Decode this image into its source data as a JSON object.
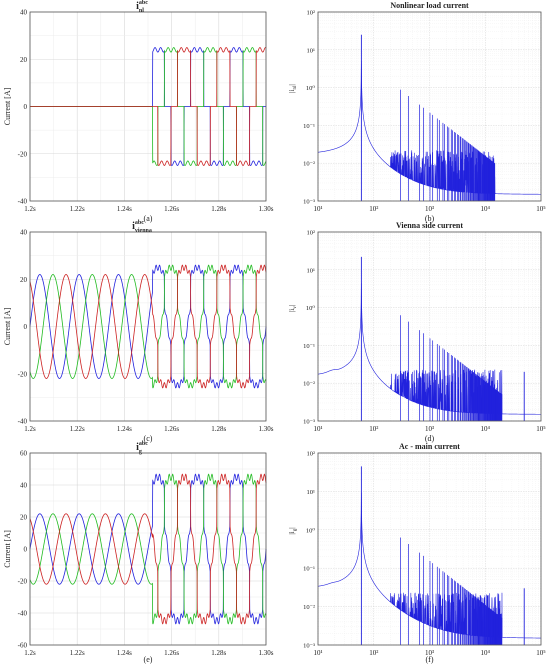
{
  "figure": {
    "panels": [
      {
        "id": "a",
        "kind": "time",
        "caption": "(a)",
        "title_main": "i",
        "title_sup": "abc",
        "title_sub": "nl",
        "ylabel": "Current [A]"
      },
      {
        "id": "b",
        "kind": "spectrum",
        "caption": "(b)",
        "title": "Nonlinear load current",
        "ylabel": "|i",
        "ylabel_sub": "nl",
        "ylabel_end": "|"
      },
      {
        "id": "c",
        "kind": "time",
        "caption": "(c)",
        "title_main": "i",
        "title_sup": "abc",
        "title_sub": "vienna",
        "ylabel": "Current [A]"
      },
      {
        "id": "d",
        "kind": "spectrum",
        "caption": "(d)",
        "title": "Vienna side current",
        "ylabel": "|i",
        "ylabel_sub": "v",
        "ylabel_end": "|"
      },
      {
        "id": "e",
        "kind": "time",
        "caption": "(e)",
        "title_main": "i",
        "title_sup": "abc",
        "title_sub": "g",
        "ylabel": "Current [A]"
      },
      {
        "id": "f",
        "kind": "spectrum",
        "caption": "(f)",
        "title": "Ac - main current",
        "ylabel": "|i",
        "ylabel_sub": "g",
        "ylabel_end": "|"
      }
    ]
  },
  "chart_data": [
    {
      "type": "line",
      "panel": "a",
      "title": "i nl abc",
      "xlabel": "",
      "ylabel": "Current [A]",
      "xlim": [
        1.2,
        1.3
      ],
      "ylim": [
        -40,
        40
      ],
      "xticks": [
        "1.2s",
        "1.22s",
        "1.24s",
        "1.26s",
        "1.28s",
        "1.30s"
      ],
      "yticks": [
        "-40",
        "-20",
        "0",
        "20",
        "40"
      ],
      "grid": true,
      "waveform": {
        "step_time": 1.252,
        "before_amplitude": 0,
        "after_amplitude": 24,
        "frequency": 60,
        "shape": "square"
      },
      "series": [
        {
          "phase": "a",
          "color": "#2222dd"
        },
        {
          "phase": "b",
          "color": "#22bb22"
        },
        {
          "phase": "c",
          "color": "#cc2222"
        }
      ]
    },
    {
      "type": "line",
      "panel": "b",
      "title": "Nonlinear load current",
      "yscale": "log",
      "xscale": "log",
      "xlim": [
        10,
        100000
      ],
      "ylim": [
        0.001,
        100
      ],
      "xticks": [
        "10¹",
        "10²",
        "10³",
        "10⁴",
        "10⁵"
      ],
      "yticks": [
        "10⁻³",
        "10⁻²",
        "10⁻¹",
        "10⁰",
        "10¹",
        "10²"
      ],
      "grid": true,
      "color": "#2222dd",
      "fundamental": {
        "frequency": 60,
        "magnitude": 25
      },
      "harmonics_end": 15000,
      "high_frequency_peak": null
    },
    {
      "type": "line",
      "panel": "c",
      "title": "i vienna abc",
      "ylabel": "Current [A]",
      "xlim": [
        1.2,
        1.3
      ],
      "ylim": [
        -40,
        40
      ],
      "xticks": [
        "1.2s",
        "1.22s",
        "1.24s",
        "1.26s",
        "1.28s",
        "1.30s"
      ],
      "yticks": [
        "-40",
        "-20",
        "0",
        "20",
        "40"
      ],
      "grid": true,
      "waveform": {
        "step_time": 1.252,
        "before_amplitude": 22,
        "after_amplitude": 25,
        "frequency": 60,
        "shape": "sine-then-distorted"
      },
      "series": [
        {
          "phase": "a",
          "color": "#2222dd"
        },
        {
          "phase": "b",
          "color": "#22bb22"
        },
        {
          "phase": "c",
          "color": "#cc2222"
        }
      ]
    },
    {
      "type": "line",
      "panel": "d",
      "title": "Vienna side current",
      "yscale": "log",
      "xscale": "log",
      "xlim": [
        10,
        100000
      ],
      "ylim": [
        0.001,
        100
      ],
      "xticks": [
        "10¹",
        "10²",
        "10³",
        "10⁴",
        "10⁵"
      ],
      "yticks": [
        "10⁻³",
        "10⁻²",
        "10⁻¹",
        "10⁰",
        "10¹",
        "10²"
      ],
      "grid": true,
      "color": "#2222dd",
      "fundamental": {
        "frequency": 60,
        "magnitude": 22
      },
      "harmonics_end": 20000,
      "high_frequency_peak": {
        "frequency": 50000,
        "magnitude": 0.02
      }
    },
    {
      "type": "line",
      "panel": "e",
      "title": "i g abc",
      "ylabel": "Current [A]",
      "xlim": [
        1.2,
        1.3
      ],
      "ylim": [
        -60,
        60
      ],
      "xticks": [
        "1.2s",
        "1.22s",
        "1.24s",
        "1.26s",
        "1.28s",
        "1.30s"
      ],
      "yticks": [
        "-60",
        "-40",
        "-20",
        "0",
        "20",
        "40",
        "60"
      ],
      "grid": true,
      "waveform": {
        "step_time": 1.252,
        "before_amplitude": 22,
        "after_amplitude": 45,
        "frequency": 60,
        "shape": "sine-then-distorted"
      },
      "series": [
        {
          "phase": "a",
          "color": "#2222dd"
        },
        {
          "phase": "b",
          "color": "#22bb22"
        },
        {
          "phase": "c",
          "color": "#cc2222"
        }
      ]
    },
    {
      "type": "line",
      "panel": "f",
      "title": "Ac - main current",
      "yscale": "log",
      "xscale": "log",
      "xlim": [
        10,
        100000
      ],
      "ylim": [
        0.001,
        100
      ],
      "xticks": [
        "10¹",
        "10²",
        "10³",
        "10⁴",
        "10⁵"
      ],
      "yticks": [
        "10⁻³",
        "10⁻²",
        "10⁻¹",
        "10⁰",
        "10¹",
        "10²"
      ],
      "grid": true,
      "color": "#2222dd",
      "fundamental": {
        "frequency": 60,
        "magnitude": 45
      },
      "harmonics_end": 20000,
      "high_frequency_peak": {
        "frequency": 50000,
        "magnitude": 0.03
      }
    }
  ]
}
